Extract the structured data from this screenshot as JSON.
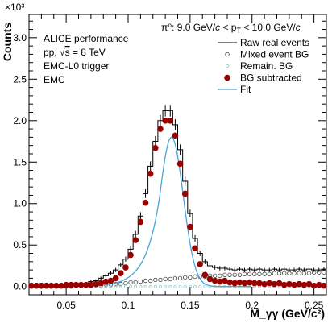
{
  "chart_data": {
    "type": "scatter",
    "xlabel": "M_γγ (GeV/c²)",
    "ylabel": "Counts",
    "y_multiplier": "×10³",
    "xlim": [
      0.02,
      0.26
    ],
    "ylim": [
      -0.1,
      3.28
    ],
    "x_ticks": [
      {
        "value": 0.05,
        "label": "0.05"
      },
      {
        "value": 0.1,
        "label": "0.1"
      },
      {
        "value": 0.15,
        "label": "0.15"
      },
      {
        "value": 0.2,
        "label": "0.2"
      },
      {
        "value": 0.25,
        "label": "0.25"
      }
    ],
    "y_ticks": [
      {
        "value": 0.0,
        "label": "0.0"
      },
      {
        "value": 0.5,
        "label": "0.5"
      },
      {
        "value": 1.0,
        "label": "1.0"
      },
      {
        "value": 1.5,
        "label": "1.5"
      },
      {
        "value": 2.0,
        "label": "2.0"
      },
      {
        "value": 2.5,
        "label": "2.5"
      },
      {
        "value": 3.0,
        "label": "3.0"
      }
    ],
    "annotations": {
      "collab": "ALICE performance",
      "system_prefix": "pp, √",
      "system_s": "s",
      "system_suffix": " = 8 TeV",
      "trigger": "EMC-L0 trigger",
      "detector": "EMC",
      "pt_prefix": "π⁰: 9.0 GeV/",
      "pt_c1": "c",
      "pt_mid": " < p",
      "pt_sub": "T",
      "pt_mid2": " < 10.0 GeV/",
      "pt_c2": "c"
    },
    "legend_position": "top-right",
    "legend": [
      {
        "label": "Raw real events",
        "style": "step"
      },
      {
        "label": "Mixed event BG",
        "style": "open-circle"
      },
      {
        "label": "Remain. BG",
        "style": "small-open-circle"
      },
      {
        "label": "BG subtracted",
        "style": "filled-circle"
      },
      {
        "label": "Fit",
        "style": "line"
      }
    ],
    "bin_width": 0.004,
    "colors": {
      "raw": "#000000",
      "mixed": "#444444",
      "remain": "#9cc9c9",
      "subtracted": "#990000",
      "fit": "#4aa3d9"
    },
    "x": [
      0.022,
      0.026,
      0.03,
      0.034,
      0.038,
      0.042,
      0.046,
      0.05,
      0.054,
      0.058,
      0.062,
      0.066,
      0.07,
      0.074,
      0.078,
      0.082,
      0.086,
      0.09,
      0.094,
      0.098,
      0.102,
      0.106,
      0.11,
      0.114,
      0.118,
      0.122,
      0.126,
      0.13,
      0.134,
      0.138,
      0.142,
      0.146,
      0.15,
      0.154,
      0.158,
      0.162,
      0.166,
      0.17,
      0.174,
      0.178,
      0.182,
      0.186,
      0.19,
      0.194,
      0.198,
      0.202,
      0.206,
      0.21,
      0.214,
      0.218,
      0.222,
      0.226,
      0.23,
      0.234,
      0.238,
      0.242,
      0.246,
      0.25,
      0.254,
      0.258
    ],
    "series": [
      {
        "name": "Raw real events",
        "values": [
          0.03,
          0.03,
          0.03,
          0.03,
          0.03,
          0.03,
          0.03,
          0.03,
          0.04,
          0.04,
          0.04,
          0.04,
          0.06,
          0.07,
          0.1,
          0.13,
          0.16,
          0.2,
          0.26,
          0.33,
          0.45,
          0.63,
          0.85,
          1.12,
          1.45,
          1.75,
          2.0,
          2.12,
          2.12,
          1.95,
          1.65,
          1.27,
          0.88,
          0.58,
          0.4,
          0.3,
          0.25,
          0.23,
          0.22,
          0.22,
          0.21,
          0.2,
          0.21,
          0.2,
          0.21,
          0.2,
          0.21,
          0.2,
          0.2,
          0.21,
          0.2,
          0.21,
          0.2,
          0.2,
          0.21,
          0.2,
          0.21,
          0.2,
          0.2,
          0.21
        ]
      },
      {
        "name": "Mixed event BG",
        "values": [
          0.0,
          0.0,
          0.0,
          0.0,
          0.0,
          0.0,
          0.0,
          0.0,
          0.0,
          0.01,
          0.01,
          0.01,
          0.01,
          0.01,
          0.01,
          0.02,
          0.02,
          0.03,
          0.03,
          0.04,
          0.05,
          0.05,
          0.06,
          0.07,
          0.07,
          0.08,
          0.08,
          0.09,
          0.09,
          0.1,
          0.1,
          0.11,
          0.11,
          0.12,
          0.12,
          0.12,
          0.13,
          0.13,
          0.13,
          0.14,
          0.14,
          0.14,
          0.14,
          0.15,
          0.15,
          0.15,
          0.15,
          0.15,
          0.15,
          0.16,
          0.16,
          0.16,
          0.16,
          0.16,
          0.16,
          0.16,
          0.16,
          0.17,
          0.17,
          0.17
        ]
      },
      {
        "name": "Remain. BG",
        "values": [
          0.0,
          0.0,
          0.0,
          0.0,
          0.0,
          0.0,
          0.0,
          0.0,
          0.0,
          0.0,
          0.0,
          0.0,
          0.0,
          0.0,
          0.0,
          0.0,
          0.0,
          0.0,
          0.0,
          0.0,
          0.0,
          0.0,
          0.0,
          0.0,
          0.0,
          0.0,
          0.0,
          0.0,
          0.0,
          0.0,
          0.0,
          0.0,
          0.0,
          0.0,
          0.0,
          0.0,
          0.0,
          0.0,
          0.0,
          0.0,
          0.0,
          0.0,
          0.0,
          0.0,
          0.0,
          0.0,
          0.0,
          0.0,
          0.0,
          0.0,
          0.0,
          0.0,
          0.0,
          0.0,
          0.0,
          0.0,
          0.0,
          0.0,
          0.0,
          0.0
        ]
      },
      {
        "name": "BG subtracted",
        "values": [
          0.01,
          0.01,
          0.01,
          0.01,
          0.01,
          0.01,
          0.01,
          0.02,
          0.02,
          0.02,
          0.02,
          0.02,
          0.02,
          0.03,
          0.04,
          0.06,
          0.07,
          0.1,
          0.16,
          0.23,
          0.38,
          0.56,
          0.78,
          1.01,
          1.36,
          1.67,
          1.9,
          2.0,
          2.0,
          1.82,
          1.48,
          1.12,
          0.72,
          0.46,
          0.27,
          0.14,
          0.09,
          0.07,
          0.06,
          0.07,
          0.05,
          0.04,
          0.05,
          0.04,
          0.05,
          0.04,
          0.04,
          0.03,
          0.04,
          0.03,
          0.04,
          0.02,
          0.03,
          0.02,
          0.03,
          0.02,
          0.03,
          0.01,
          0.02,
          0.01
        ]
      }
    ],
    "fit": {
      "type": "gaussian+exp-tail",
      "amplitude": 1.8,
      "mean": 0.135,
      "sigma": 0.0095,
      "tail": 0.011
    }
  }
}
